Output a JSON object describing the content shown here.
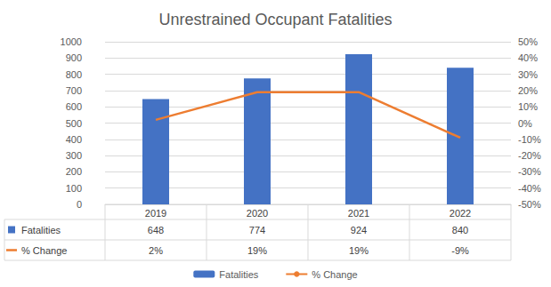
{
  "chart_data": {
    "type": "bar",
    "title": "Unrestrained Occupant Fatalities",
    "categories": [
      "2019",
      "2020",
      "2021",
      "2022"
    ],
    "series": [
      {
        "name": "Fatalities",
        "type": "bar",
        "color": "#4472c4",
        "values": [
          648,
          774,
          924,
          840
        ]
      },
      {
        "name": "% Change",
        "type": "line",
        "color": "#ed7d31",
        "axis": "y2",
        "values": [
          2,
          19,
          19,
          -9
        ],
        "value_labels": [
          "2%",
          "19%",
          "19%",
          "-9%"
        ]
      }
    ],
    "ylim": [
      0,
      1000
    ],
    "yticks": [
      0,
      100,
      200,
      300,
      400,
      500,
      600,
      700,
      800,
      900,
      1000
    ],
    "y2lim": [
      -50,
      50
    ],
    "y2ticks": [
      {
        "value": -50,
        "label": "-50%"
      },
      {
        "value": -40,
        "label": "-40%"
      },
      {
        "value": -30,
        "label": "-30%"
      },
      {
        "value": -20,
        "label": "-20%"
      },
      {
        "value": -10,
        "label": "-10%"
      },
      {
        "value": 0,
        "label": "0%"
      },
      {
        "value": 10,
        "label": "10%"
      },
      {
        "value": 20,
        "label": "20%"
      },
      {
        "value": 30,
        "label": "30%"
      },
      {
        "value": 40,
        "label": "40%"
      },
      {
        "value": 50,
        "label": "50%"
      }
    ],
    "grid": true,
    "legend": "bottom"
  }
}
